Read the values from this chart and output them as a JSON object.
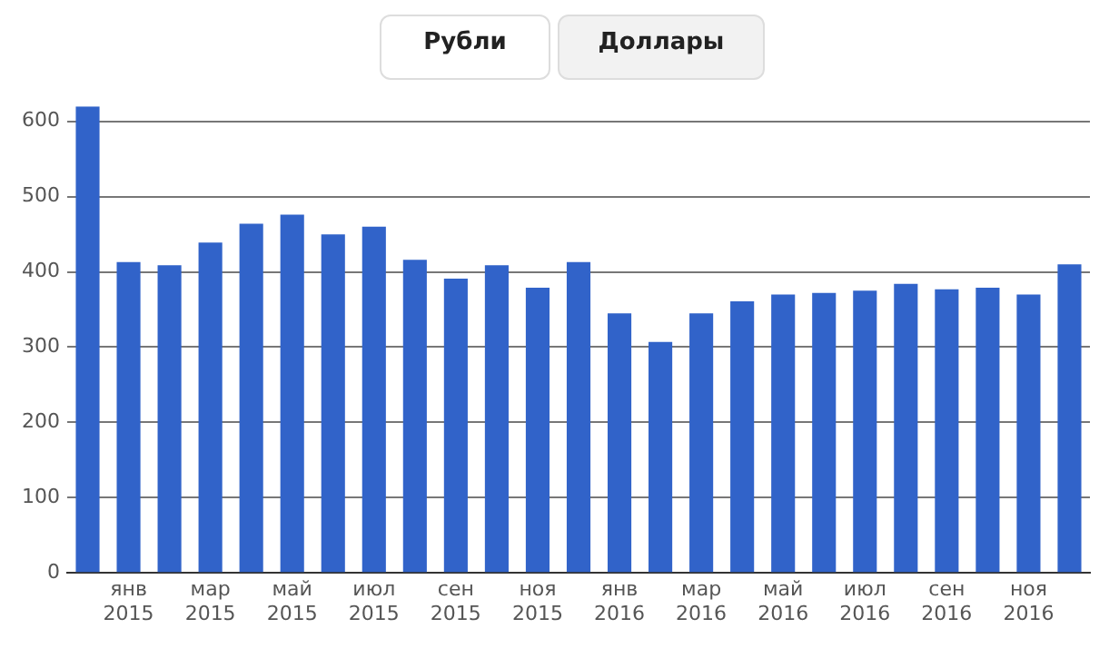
{
  "chart_data": {
    "type": "bar",
    "annotations": [
      "Рубли",
      "Доллары"
    ],
    "categories": [
      null,
      "янв 2015",
      null,
      "мар 2015",
      null,
      "май 2015",
      null,
      "июл 2015",
      null,
      "сен 2015",
      null,
      "ноя 2015",
      null,
      "янв 2016",
      null,
      "мар 2016",
      null,
      "май 2016",
      null,
      "июл 2016",
      null,
      "сен 2016",
      null,
      "ноя 2016",
      null
    ],
    "values": [
      620,
      413,
      409,
      439,
      464,
      476,
      450,
      460,
      416,
      391,
      409,
      379,
      413,
      345,
      307,
      345,
      361,
      370,
      372,
      375,
      384,
      377,
      379,
      370,
      410
    ],
    "color": "#3163c9",
    "ylim": [
      0,
      620
    ],
    "yticks": [
      0,
      100,
      200,
      300,
      400,
      500,
      600
    ],
    "grid": "y",
    "legend": false
  }
}
